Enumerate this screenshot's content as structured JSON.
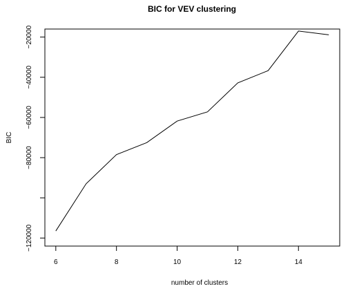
{
  "chart_data": {
    "type": "line",
    "title": "BIC for VEV clustering",
    "xlabel": "number of clusters",
    "ylabel": "BIC",
    "xlim": [
      6,
      15
    ],
    "ylim": [
      -120000,
      -20000
    ],
    "x_ticks": [
      6,
      8,
      10,
      12,
      14
    ],
    "x_tick_labels": [
      "6",
      "8",
      "10",
      "12",
      "14"
    ],
    "y_ticks": [
      -120000,
      -100000,
      -80000,
      -60000,
      -40000,
      -20000
    ],
    "y_tick_labels": [
      "−120000",
      "",
      "−80000",
      "−60000",
      "−40000",
      "−20000"
    ],
    "grid": false,
    "legend": "none",
    "color": "#000000",
    "series": [
      {
        "x": [
          6,
          7,
          8,
          9,
          10,
          11,
          12,
          13,
          14,
          15
        ],
        "values": [
          -116500,
          -93000,
          -78500,
          -72500,
          -61800,
          -57200,
          -42800,
          -36700,
          -17000,
          -18900
        ]
      }
    ]
  }
}
